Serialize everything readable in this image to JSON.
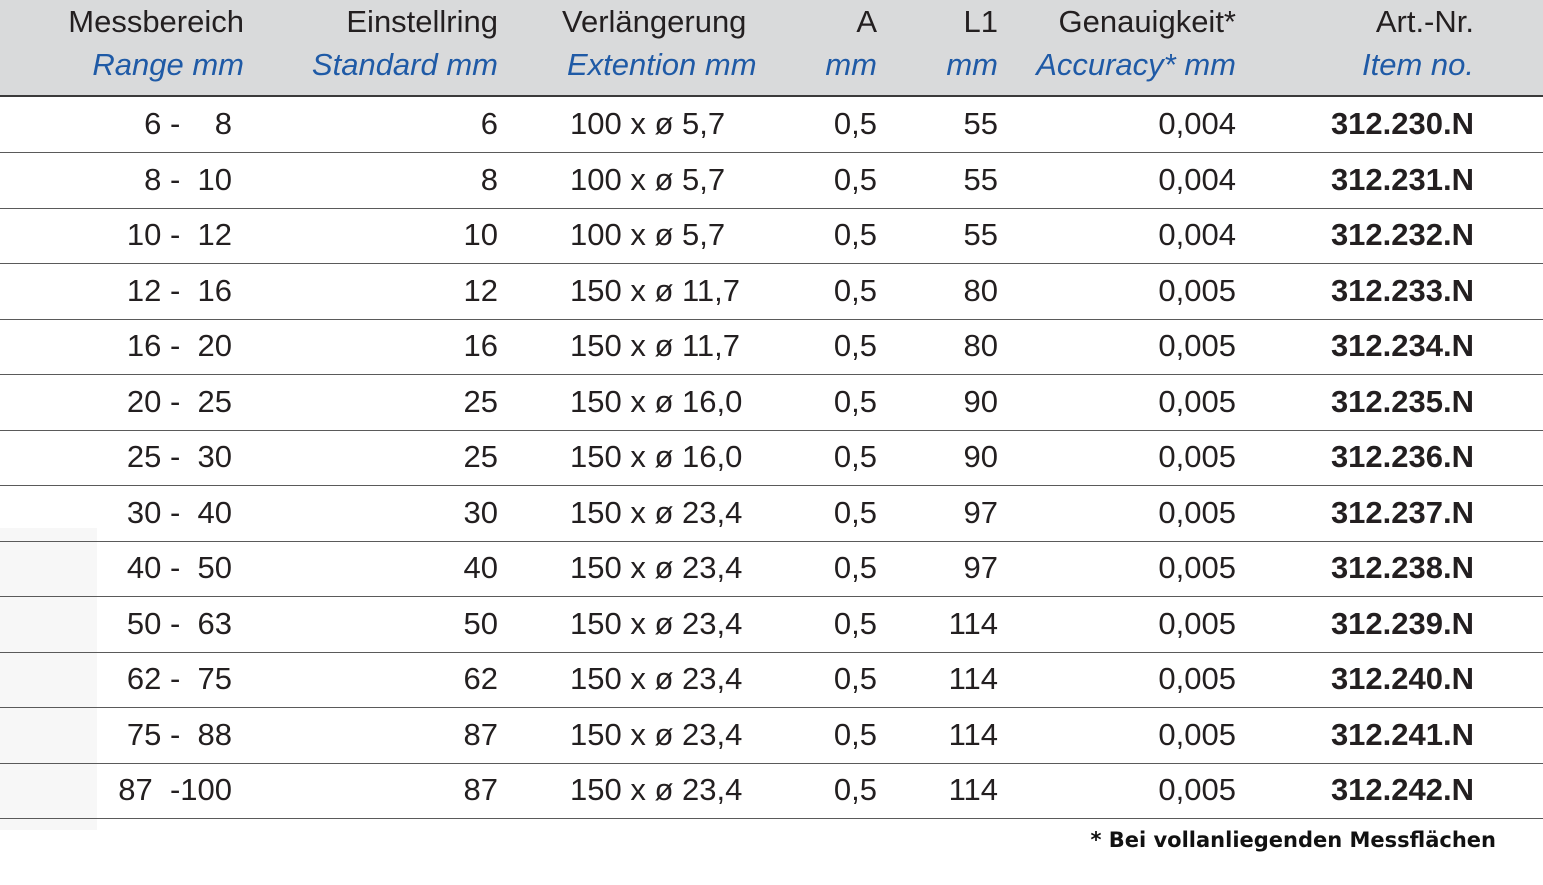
{
  "columns": [
    {
      "de": "Messbereich",
      "en": "Range mm"
    },
    {
      "de": "Einstellring",
      "en": "Standard mm"
    },
    {
      "de": "Verlängerung",
      "en": "Extention mm"
    },
    {
      "de": "A",
      "en": "mm"
    },
    {
      "de": "L1",
      "en": "mm"
    },
    {
      "de": "Genauigkeit*",
      "en": "Accuracy* mm"
    },
    {
      "de": "Art.-Nr.",
      "en": "Item no."
    }
  ],
  "rows": [
    {
      "range": "6 -    8",
      "standard": "6",
      "extension": "100 x ø 5,7",
      "a": "0,5",
      "l1": "55",
      "accuracy": "0,004",
      "item": "312.230.N"
    },
    {
      "range": "8 -  10",
      "standard": "8",
      "extension": "100 x ø 5,7",
      "a": "0,5",
      "l1": "55",
      "accuracy": "0,004",
      "item": "312.231.N"
    },
    {
      "range": "10 -  12",
      "standard": "10",
      "extension": "100 x ø 5,7",
      "a": "0,5",
      "l1": "55",
      "accuracy": "0,004",
      "item": "312.232.N"
    },
    {
      "range": "12 -  16",
      "standard": "12",
      "extension": "150 x ø 11,7",
      "a": "0,5",
      "l1": "80",
      "accuracy": "0,005",
      "item": "312.233.N"
    },
    {
      "range": "16 -  20",
      "standard": "16",
      "extension": "150 x ø 11,7",
      "a": "0,5",
      "l1": "80",
      "accuracy": "0,005",
      "item": "312.234.N"
    },
    {
      "range": "20 -  25",
      "standard": "25",
      "extension": "150 x ø 16,0",
      "a": "0,5",
      "l1": "90",
      "accuracy": "0,005",
      "item": "312.235.N"
    },
    {
      "range": "25 -  30",
      "standard": "25",
      "extension": "150 x ø 16,0",
      "a": "0,5",
      "l1": "90",
      "accuracy": "0,005",
      "item": "312.236.N"
    },
    {
      "range": "30 -  40",
      "standard": "30",
      "extension": "150 x ø 23,4",
      "a": "0,5",
      "l1": "97",
      "accuracy": "0,005",
      "item": "312.237.N"
    },
    {
      "range": "40 -  50",
      "standard": "40",
      "extension": "150 x ø 23,4",
      "a": "0,5",
      "l1": "97",
      "accuracy": "0,005",
      "item": "312.238.N"
    },
    {
      "range": "50 -  63",
      "standard": "50",
      "extension": "150 x ø 23,4",
      "a": "0,5",
      "l1": "114",
      "accuracy": "0,005",
      "item": "312.239.N"
    },
    {
      "range": "62 -  75",
      "standard": "62",
      "extension": "150 x ø 23,4",
      "a": "0,5",
      "l1": "114",
      "accuracy": "0,005",
      "item": "312.240.N"
    },
    {
      "range": "75 -  88",
      "standard": "87",
      "extension": "150 x ø 23,4",
      "a": "0,5",
      "l1": "114",
      "accuracy": "0,005",
      "item": "312.241.N"
    },
    {
      "range": "87  -100",
      "standard": "87",
      "extension": "150 x ø 23,4",
      "a": "0,5",
      "l1": "114",
      "accuracy": "0,005",
      "item": "312.242.N"
    }
  ],
  "footnote": "* Bei vollanliegenden Messflächen",
  "colors": {
    "header_bg": "#d9dadb",
    "english_label": "#1f5aa6",
    "text": "#231f20"
  }
}
